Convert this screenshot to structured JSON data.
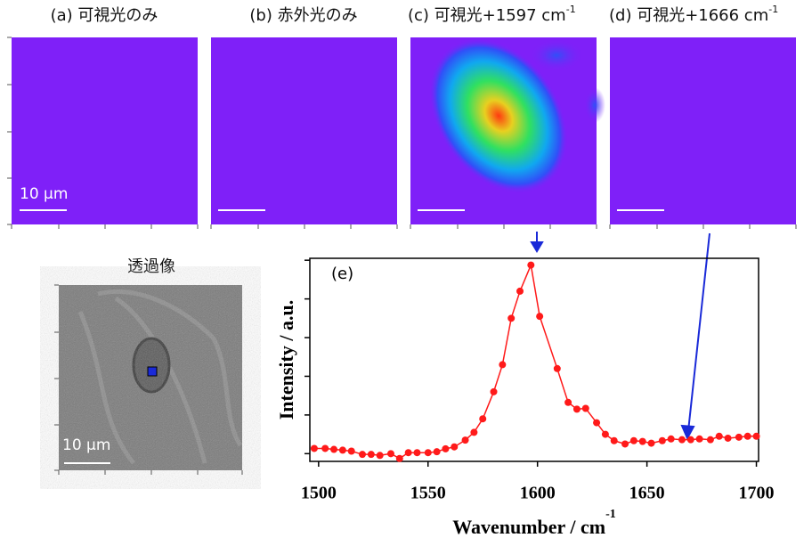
{
  "panels": [
    {
      "title": "(a) 可視光のみ",
      "scale_label": "10 μm"
    },
    {
      "title": "(b) 赤外光のみ"
    },
    {
      "title": "(c) 可視光+1597 cm",
      "title_superscript": "-1"
    },
    {
      "title": "(d) 可視光+1666 cm",
      "title_superscript": "-1"
    }
  ],
  "transmission": {
    "title": "透過像",
    "scale_label": "10 μm"
  },
  "chart_data": {
    "type": "line",
    "annotation": "(e)",
    "xlabel": "Wavenumber / cm",
    "xlabel_superscript": "-1",
    "ylabel": "Intensity / a.u.",
    "x": [
      1498,
      1503,
      1507,
      1511,
      1515,
      1520,
      1524,
      1528,
      1533,
      1537,
      1541,
      1545,
      1550,
      1554,
      1558,
      1562,
      1567,
      1571,
      1575,
      1580,
      1584,
      1588,
      1592,
      1597,
      1601,
      1609,
      1614,
      1618,
      1622,
      1627,
      1631,
      1635,
      1640,
      1644,
      1648,
      1652,
      1657,
      1661,
      1666,
      1670,
      1674,
      1679,
      1683,
      1687,
      1692,
      1696,
      1700
    ],
    "series": [
      {
        "color": "#ff1a1a",
        "values": [
          2.7,
          2.7,
          2.2,
          1.8,
          1.3,
          -0.4,
          -0.4,
          -0.9,
          0,
          -2.5,
          0.5,
          0.5,
          0.5,
          1,
          2.5,
          3.5,
          7,
          11,
          18,
          32,
          46,
          70,
          84,
          97.5,
          71,
          44,
          26.5,
          23,
          23.4,
          16,
          10,
          6.7,
          5,
          6.7,
          6.3,
          5.4,
          6.7,
          7.6,
          7.2,
          7.2,
          7.6,
          7.2,
          9,
          8,
          8.5,
          9,
          9
        ]
      }
    ],
    "xlim": [
      1496,
      1701
    ],
    "xticks": [
      1500,
      1550,
      1600,
      1650,
      1700
    ],
    "ylim": [
      -4,
      101
    ],
    "yticks": [
      0,
      20,
      40,
      60,
      80,
      100
    ]
  }
}
